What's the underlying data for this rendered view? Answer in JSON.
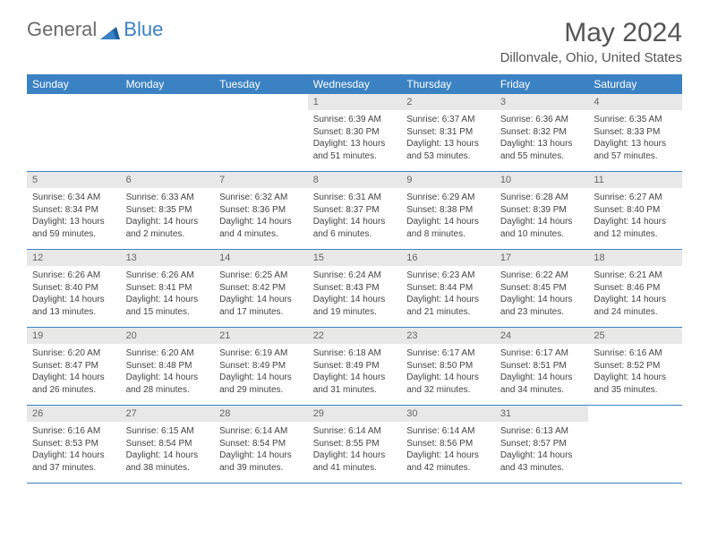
{
  "logo": {
    "general": "General",
    "blue": "Blue"
  },
  "title": "May 2024",
  "location": "Dillonvale, Ohio, United States",
  "colors": {
    "header_bg": "#3b82c4",
    "header_text": "#ffffff",
    "daynum_bg": "#e8e8e8",
    "border": "#3b82c4",
    "logo_gray": "#6b6b6b",
    "logo_blue": "#3b82c4"
  },
  "day_headers": [
    "Sunday",
    "Monday",
    "Tuesday",
    "Wednesday",
    "Thursday",
    "Friday",
    "Saturday"
  ],
  "weeks": [
    [
      null,
      null,
      null,
      {
        "n": "1",
        "sunrise": "6:39 AM",
        "sunset": "8:30 PM",
        "daylight": "13 hours and 51 minutes."
      },
      {
        "n": "2",
        "sunrise": "6:37 AM",
        "sunset": "8:31 PM",
        "daylight": "13 hours and 53 minutes."
      },
      {
        "n": "3",
        "sunrise": "6:36 AM",
        "sunset": "8:32 PM",
        "daylight": "13 hours and 55 minutes."
      },
      {
        "n": "4",
        "sunrise": "6:35 AM",
        "sunset": "8:33 PM",
        "daylight": "13 hours and 57 minutes."
      }
    ],
    [
      {
        "n": "5",
        "sunrise": "6:34 AM",
        "sunset": "8:34 PM",
        "daylight": "13 hours and 59 minutes."
      },
      {
        "n": "6",
        "sunrise": "6:33 AM",
        "sunset": "8:35 PM",
        "daylight": "14 hours and 2 minutes."
      },
      {
        "n": "7",
        "sunrise": "6:32 AM",
        "sunset": "8:36 PM",
        "daylight": "14 hours and 4 minutes."
      },
      {
        "n": "8",
        "sunrise": "6:31 AM",
        "sunset": "8:37 PM",
        "daylight": "14 hours and 6 minutes."
      },
      {
        "n": "9",
        "sunrise": "6:29 AM",
        "sunset": "8:38 PM",
        "daylight": "14 hours and 8 minutes."
      },
      {
        "n": "10",
        "sunrise": "6:28 AM",
        "sunset": "8:39 PM",
        "daylight": "14 hours and 10 minutes."
      },
      {
        "n": "11",
        "sunrise": "6:27 AM",
        "sunset": "8:40 PM",
        "daylight": "14 hours and 12 minutes."
      }
    ],
    [
      {
        "n": "12",
        "sunrise": "6:26 AM",
        "sunset": "8:40 PM",
        "daylight": "14 hours and 13 minutes."
      },
      {
        "n": "13",
        "sunrise": "6:26 AM",
        "sunset": "8:41 PM",
        "daylight": "14 hours and 15 minutes."
      },
      {
        "n": "14",
        "sunrise": "6:25 AM",
        "sunset": "8:42 PM",
        "daylight": "14 hours and 17 minutes."
      },
      {
        "n": "15",
        "sunrise": "6:24 AM",
        "sunset": "8:43 PM",
        "daylight": "14 hours and 19 minutes."
      },
      {
        "n": "16",
        "sunrise": "6:23 AM",
        "sunset": "8:44 PM",
        "daylight": "14 hours and 21 minutes."
      },
      {
        "n": "17",
        "sunrise": "6:22 AM",
        "sunset": "8:45 PM",
        "daylight": "14 hours and 23 minutes."
      },
      {
        "n": "18",
        "sunrise": "6:21 AM",
        "sunset": "8:46 PM",
        "daylight": "14 hours and 24 minutes."
      }
    ],
    [
      {
        "n": "19",
        "sunrise": "6:20 AM",
        "sunset": "8:47 PM",
        "daylight": "14 hours and 26 minutes."
      },
      {
        "n": "20",
        "sunrise": "6:20 AM",
        "sunset": "8:48 PM",
        "daylight": "14 hours and 28 minutes."
      },
      {
        "n": "21",
        "sunrise": "6:19 AM",
        "sunset": "8:49 PM",
        "daylight": "14 hours and 29 minutes."
      },
      {
        "n": "22",
        "sunrise": "6:18 AM",
        "sunset": "8:49 PM",
        "daylight": "14 hours and 31 minutes."
      },
      {
        "n": "23",
        "sunrise": "6:17 AM",
        "sunset": "8:50 PM",
        "daylight": "14 hours and 32 minutes."
      },
      {
        "n": "24",
        "sunrise": "6:17 AM",
        "sunset": "8:51 PM",
        "daylight": "14 hours and 34 minutes."
      },
      {
        "n": "25",
        "sunrise": "6:16 AM",
        "sunset": "8:52 PM",
        "daylight": "14 hours and 35 minutes."
      }
    ],
    [
      {
        "n": "26",
        "sunrise": "6:16 AM",
        "sunset": "8:53 PM",
        "daylight": "14 hours and 37 minutes."
      },
      {
        "n": "27",
        "sunrise": "6:15 AM",
        "sunset": "8:54 PM",
        "daylight": "14 hours and 38 minutes."
      },
      {
        "n": "28",
        "sunrise": "6:14 AM",
        "sunset": "8:54 PM",
        "daylight": "14 hours and 39 minutes."
      },
      {
        "n": "29",
        "sunrise": "6:14 AM",
        "sunset": "8:55 PM",
        "daylight": "14 hours and 41 minutes."
      },
      {
        "n": "30",
        "sunrise": "6:14 AM",
        "sunset": "8:56 PM",
        "daylight": "14 hours and 42 minutes."
      },
      {
        "n": "31",
        "sunrise": "6:13 AM",
        "sunset": "8:57 PM",
        "daylight": "14 hours and 43 minutes."
      },
      null
    ]
  ],
  "labels": {
    "sunrise": "Sunrise: ",
    "sunset": "Sunset: ",
    "daylight": "Daylight: "
  }
}
